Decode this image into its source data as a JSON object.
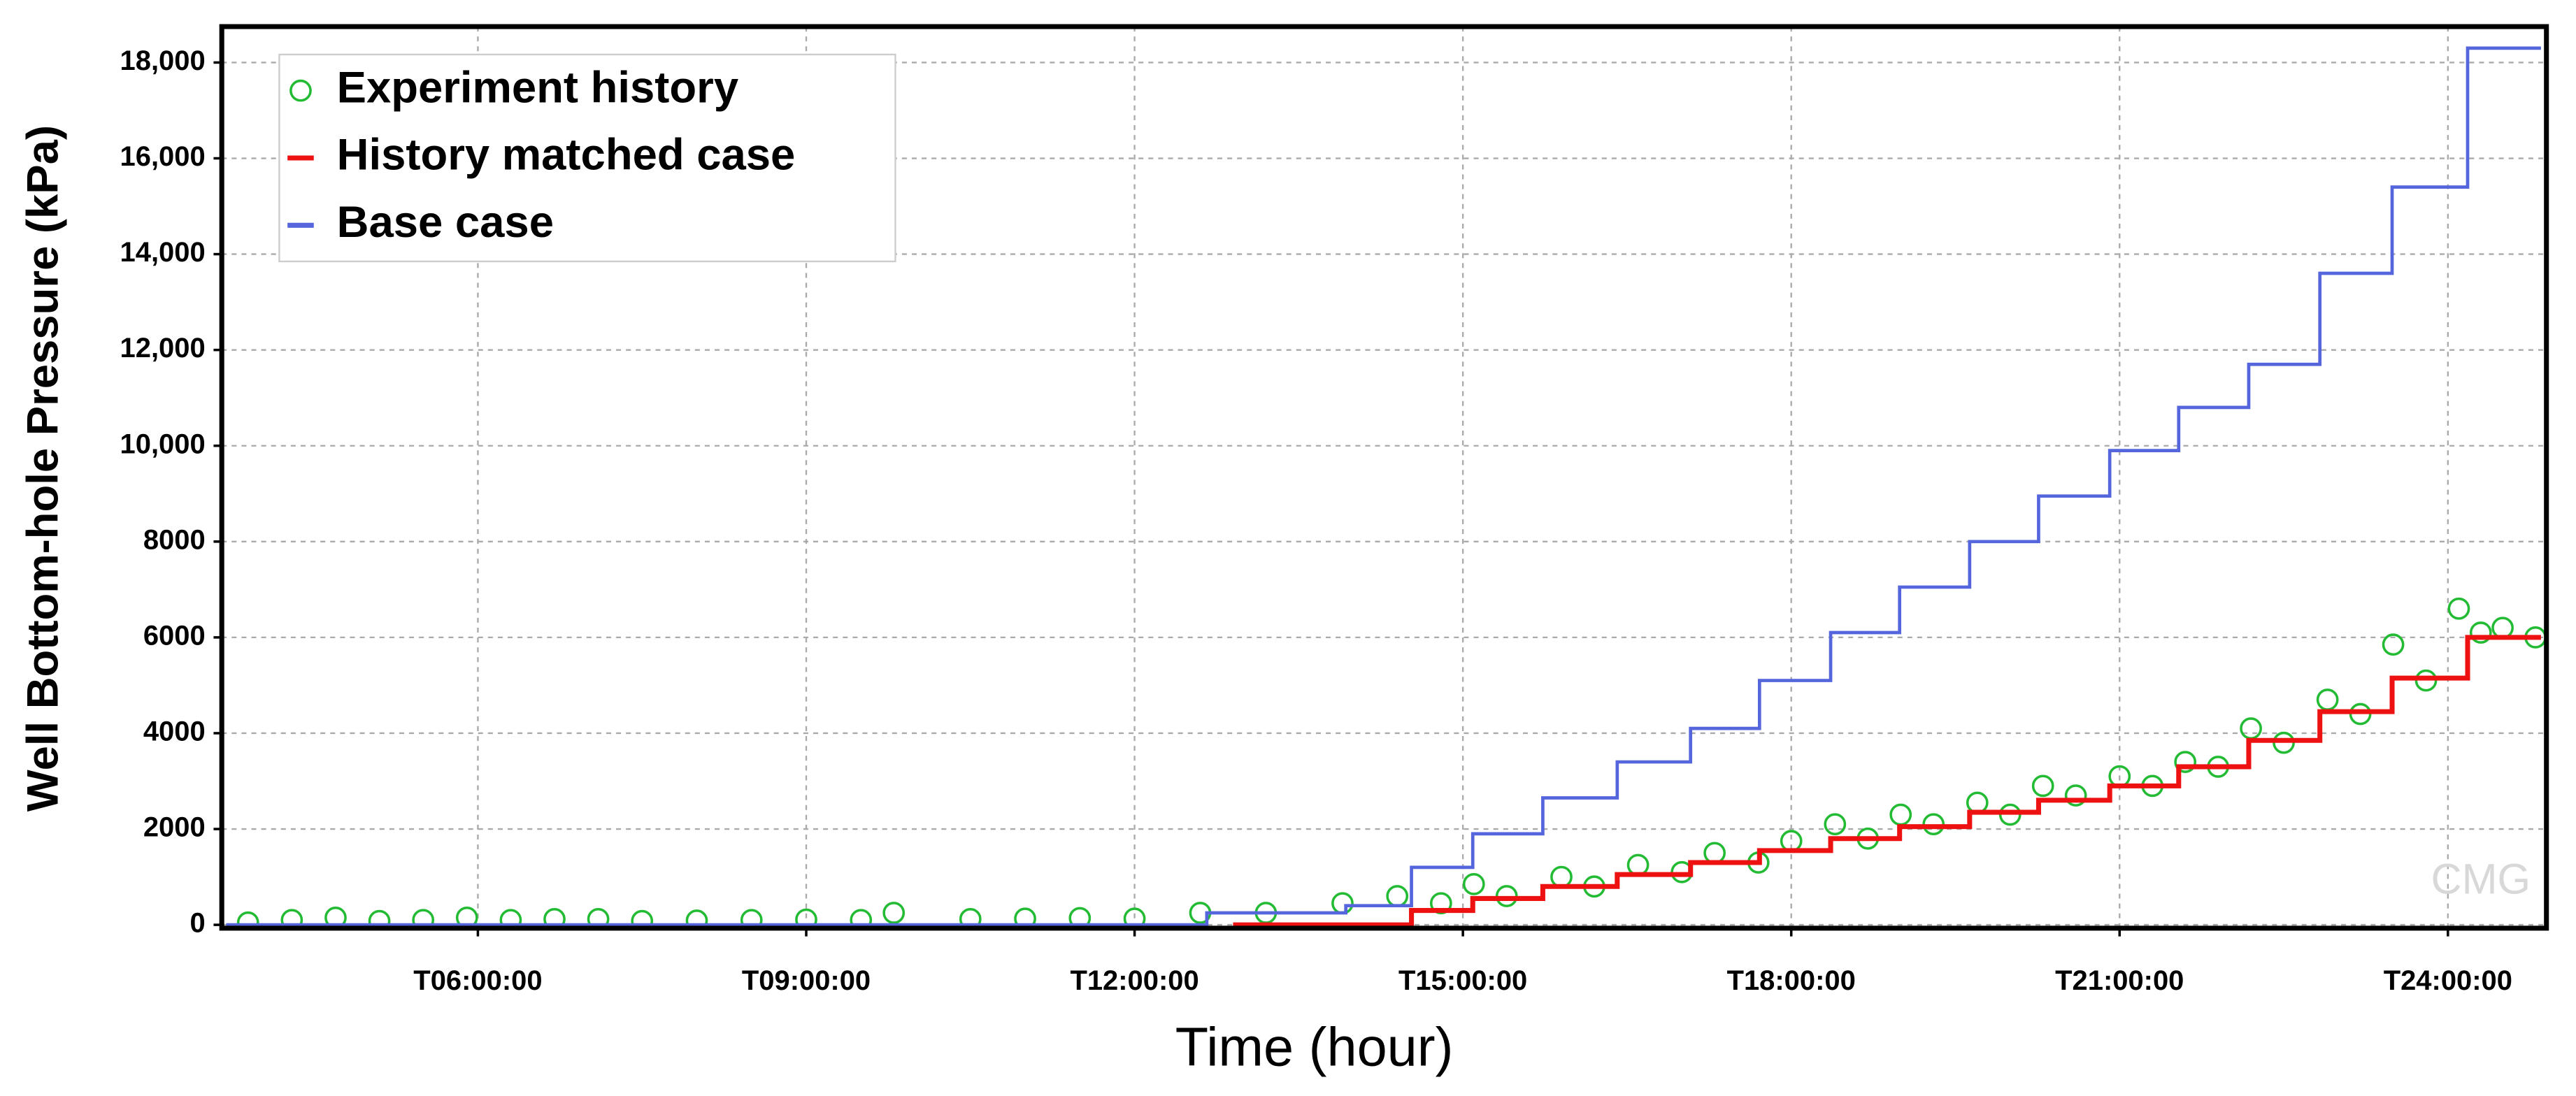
{
  "chart_data": {
    "type": "line",
    "x_label": "Time (hour)",
    "y_label": "Well Bottom-hole Pressure (kPa)",
    "watermark": "CMG",
    "xlim": [
      3.66,
      24.9
    ],
    "xticks": [
      {
        "value": 6,
        "label": "T06:00:00"
      },
      {
        "value": 9,
        "label": "T09:00:00"
      },
      {
        "value": 12,
        "label": "T12:00:00"
      },
      {
        "value": 15,
        "label": "T15:00:00"
      },
      {
        "value": 18,
        "label": "T18:00:00"
      },
      {
        "value": 21,
        "label": "T21:00:00"
      },
      {
        "value": 24,
        "label": "T24:00:00"
      }
    ],
    "ylim": [
      -70,
      18750
    ],
    "yticks": [
      0,
      2000,
      4000,
      6000,
      8000,
      {
        "value": 10000,
        "label": "10,000"
      },
      {
        "value": 12000,
        "label": "12,000"
      },
      {
        "value": 14000,
        "label": "14,000"
      },
      {
        "value": 16000,
        "label": "16,000"
      },
      {
        "value": 18000,
        "label": "18,000"
      }
    ],
    "grid": true,
    "legend": "upper left",
    "series": [
      {
        "name": "Experiment history",
        "color": "#22bb33",
        "style": "markers",
        "x": [
          3.9,
          4.3,
          4.7,
          5.1,
          5.5,
          5.9,
          6.3,
          6.7,
          7.1,
          7.5,
          8.0,
          8.5,
          9.0,
          9.5,
          9.8,
          10.5,
          11.0,
          11.5,
          12.0,
          12.6,
          13.2,
          13.9,
          14.4,
          14.8,
          15.1,
          15.4,
          15.9,
          16.2,
          16.6,
          17.0,
          17.3,
          17.7,
          18.0,
          18.4,
          18.7,
          19.0,
          19.3,
          19.7,
          20.0,
          20.3,
          20.6,
          21.0,
          21.3,
          21.6,
          21.9,
          22.2,
          22.5,
          22.9,
          23.2,
          23.5,
          23.8,
          24.1,
          24.3,
          24.5,
          24.8
        ],
        "values": [
          50,
          100,
          150,
          80,
          100,
          150,
          100,
          120,
          120,
          80,
          90,
          100,
          110,
          100,
          250,
          120,
          130,
          140,
          130,
          250,
          250,
          450,
          600,
          450,
          850,
          600,
          1000,
          800,
          1250,
          1100,
          1500,
          1300,
          1750,
          2100,
          1800,
          2300,
          2100,
          2550,
          2300,
          2900,
          2700,
          3100,
          2900,
          3400,
          3300,
          4100,
          3800,
          4700,
          4400,
          5850,
          5100,
          6600,
          6100,
          6200,
          6000
        ]
      },
      {
        "name": "History matched case",
        "color": "#ee1111",
        "style": "line",
        "x": [
          12.9,
          14.53,
          14.53,
          15.09,
          15.09,
          15.73,
          15.73,
          16.41,
          16.41,
          17.08,
          17.08,
          17.71,
          17.71,
          18.36,
          18.36,
          18.99,
          18.99,
          19.63,
          19.63,
          20.26,
          20.26,
          20.91,
          20.91,
          21.54,
          21.54,
          22.18,
          22.18,
          22.83,
          22.83,
          23.49,
          23.49,
          24.18,
          24.18,
          24.85
        ],
        "values": [
          0,
          0,
          300,
          300,
          550,
          550,
          800,
          800,
          1050,
          1050,
          1300,
          1300,
          1550,
          1550,
          1800,
          1800,
          2050,
          2050,
          2350,
          2350,
          2600,
          2600,
          2900,
          2900,
          3300,
          3300,
          3850,
          3850,
          4450,
          4450,
          5150,
          5150,
          6000,
          6000
        ]
      },
      {
        "name": "Base case",
        "color": "#5566dd",
        "style": "line",
        "x": [
          3.7,
          12.66,
          12.66,
          13.93,
          13.93,
          14.53,
          14.53,
          15.09,
          15.09,
          15.73,
          15.73,
          16.41,
          16.41,
          17.08,
          17.08,
          17.71,
          17.71,
          18.36,
          18.36,
          18.99,
          18.99,
          19.63,
          19.63,
          20.26,
          20.26,
          20.91,
          20.91,
          21.54,
          21.54,
          22.18,
          22.18,
          22.83,
          22.83,
          23.49,
          23.49,
          24.18,
          24.18,
          24.85
        ],
        "values": [
          0,
          0,
          250,
          250,
          400,
          400,
          1200,
          1200,
          1900,
          1900,
          2650,
          2650,
          3400,
          3400,
          4100,
          4100,
          5100,
          5100,
          6100,
          6100,
          7050,
          7050,
          8000,
          8000,
          8950,
          8950,
          9900,
          9900,
          10800,
          10800,
          11700,
          11700,
          13600,
          13600,
          15400,
          15400,
          18300,
          18300
        ]
      }
    ]
  }
}
